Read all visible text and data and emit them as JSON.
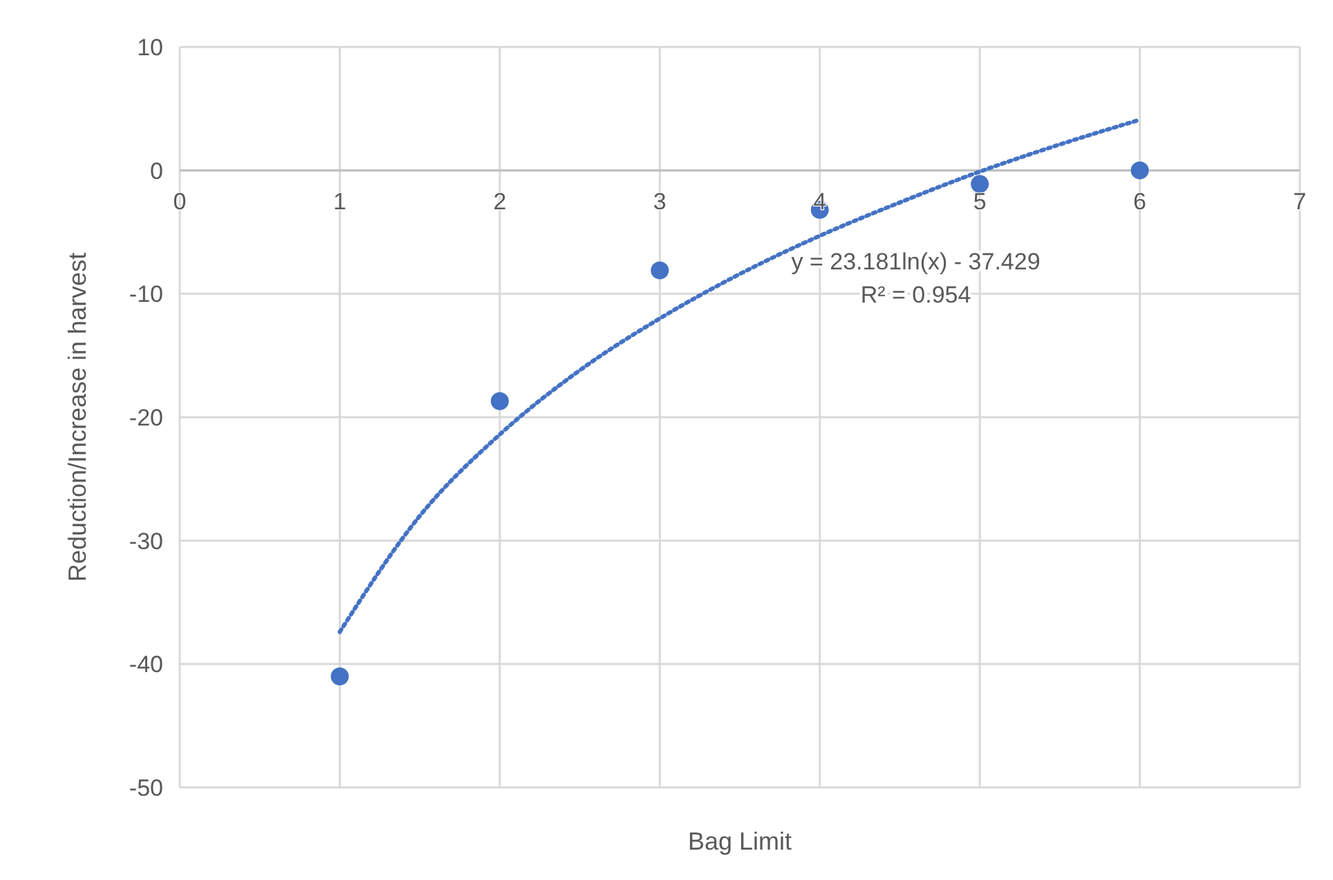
{
  "chart_data": {
    "type": "scatter",
    "xlabel": "Bag Limit",
    "ylabel": "Reduction/Increase in harvest",
    "xlim": [
      0,
      7
    ],
    "xticks": [
      0,
      1,
      2,
      3,
      4,
      5,
      6,
      7
    ],
    "ylim": [
      -50,
      10
    ],
    "yticks": [
      -50,
      -40,
      -30,
      -20,
      -10,
      0,
      10
    ],
    "grid": true,
    "series": [
      {
        "type": "scatter",
        "color": "#4472c4",
        "marker": "circle",
        "x": [
          1,
          2,
          3,
          4,
          5,
          6
        ],
        "values": [
          -41,
          -18.7,
          -8.1,
          -3.2,
          -1.1,
          0
        ]
      },
      {
        "type": "line",
        "color": "#4472c4",
        "marker": "none",
        "line_style": "dotted",
        "x": [
          1,
          1.5,
          2,
          2.5,
          3,
          3.5,
          4,
          4.5,
          5,
          5.5,
          6
        ],
        "values": [
          -37.4,
          -28,
          -21.4,
          -16.2,
          -12,
          -8.4,
          -5.3,
          -2.6,
          -0.1,
          2.1,
          4.1
        ]
      }
    ],
    "annotations": [
      "y = 23.181ln(x) - 37.429",
      "R² = 0.954"
    ]
  }
}
